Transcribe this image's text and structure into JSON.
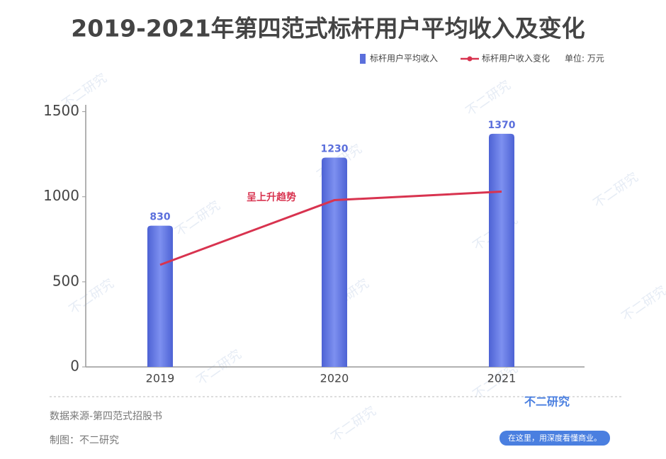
{
  "chart_data": {
    "type": "bar",
    "title": "2019-2021年第四范式标杆用户平均收入及变化",
    "unit": "单位: 万元",
    "categories": [
      "2019",
      "2020",
      "2021"
    ],
    "series": [
      {
        "name": "标杆用户平均收入",
        "type": "bar",
        "color": "#5b6fdc",
        "values": [
          830,
          1230,
          1370
        ]
      },
      {
        "name": "标杆用户收入变化",
        "type": "line",
        "color": "#d8334f",
        "values": [
          600,
          980,
          1030
        ]
      }
    ],
    "annotation": "呈上升趋势",
    "ylim": [
      0,
      1540
    ],
    "yticks": [
      0,
      500,
      1000,
      1500
    ],
    "grid": false
  },
  "footer": {
    "source": "数据来源-第四范式招股书",
    "credit": "制图：不二研究",
    "logo": "不二研究",
    "slogan": "在这里，用深度看懂商业。",
    "watermark": "不二研究"
  }
}
